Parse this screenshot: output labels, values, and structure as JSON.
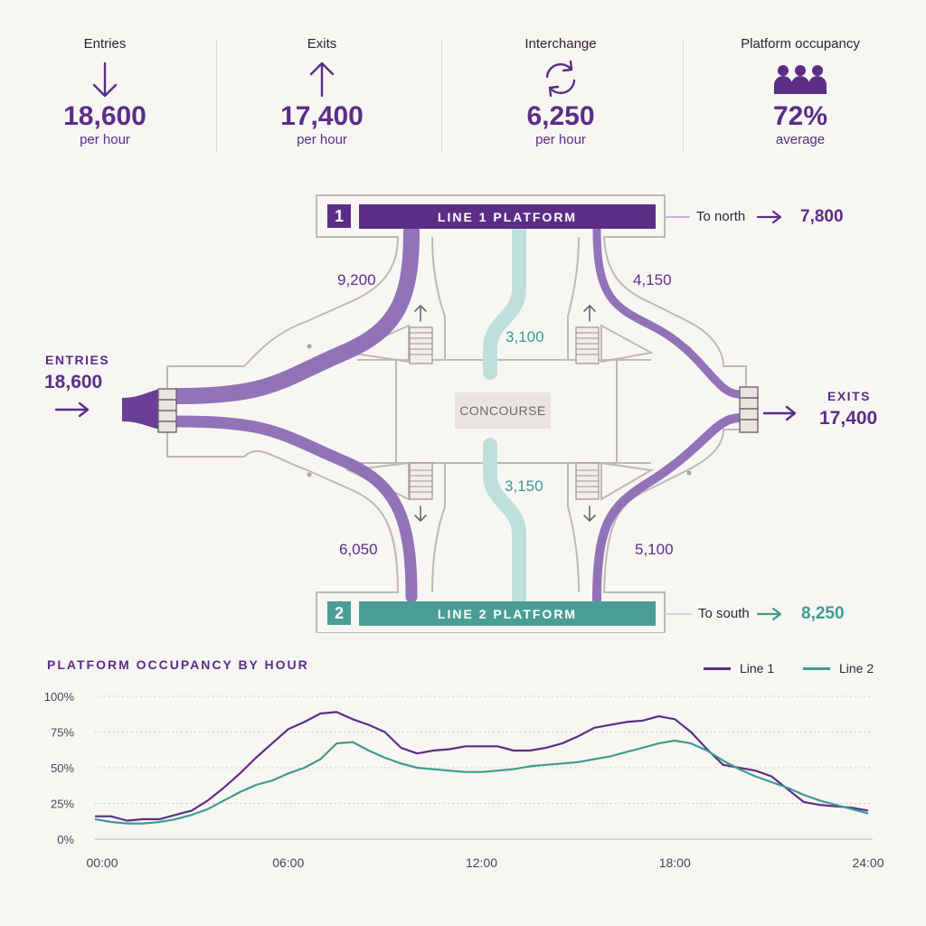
{
  "kpis": [
    {
      "label": "Entries",
      "value": "18,600",
      "unit": "per hour",
      "icon": "arrow-down-icon"
    },
    {
      "label": "Exits",
      "value": "17,400",
      "unit": "per hour",
      "icon": "arrow-up-icon"
    },
    {
      "label": "Interchange",
      "value": "6,250",
      "unit": "per hour",
      "icon": "interchange-cycle-icon"
    },
    {
      "label": "Platform occupancy",
      "value": "72%",
      "unit": "average",
      "icon": "people-group-icon"
    }
  ],
  "diagram": {
    "platform1": {
      "badge": "1",
      "label": "LINE 1 PLATFORM"
    },
    "platform2": {
      "badge": "2",
      "label": "LINE 2 PLATFORM"
    },
    "concourse": "CONCOURSE",
    "entries": {
      "label": "ENTRIES",
      "value": "18,600"
    },
    "exits": {
      "label": "EXITS",
      "value": "17,400"
    },
    "flows": {
      "entry_to_line1": "9,200",
      "line1_to_exit": "4,150",
      "entry_to_line2": "6,050",
      "line2_to_exit": "5,100",
      "interchange_up": "3,100",
      "interchange_down": "3,150"
    },
    "north": {
      "label": "To north",
      "value": "7,800"
    },
    "south": {
      "label": "To south",
      "value": "8,250"
    }
  },
  "colors": {
    "purple": "#5b2e86",
    "flow_purple": "#8c6bb4",
    "teal": "#3d9c90",
    "teal_light": "#bfe0da"
  },
  "chart_data": {
    "type": "line",
    "title": "PLATFORM OCCUPANCY BY HOUR",
    "x_ticks": [
      "00:00",
      "06:00",
      "12:00",
      "18:00",
      "24:00"
    ],
    "y_ticks": [
      "0%",
      "25%",
      "50%",
      "75%",
      "100%"
    ],
    "xlim": [
      0,
      24
    ],
    "ylim": [
      0,
      100
    ],
    "legend_position": "top-right",
    "grid": true,
    "series": [
      {
        "name": "Line 1",
        "color": "#5b2e86",
        "x": [
          0,
          0.5,
          1,
          1.5,
          2,
          2.5,
          3,
          3.5,
          4,
          4.5,
          5,
          5.5,
          6,
          6.5,
          7,
          7.5,
          8,
          8.5,
          9,
          9.5,
          10,
          10.5,
          11,
          11.5,
          12,
          12.5,
          13,
          13.5,
          14,
          14.5,
          15,
          15.5,
          16,
          16.5,
          17,
          17.5,
          18,
          18.5,
          19,
          19.5,
          20,
          20.5,
          21,
          21.5,
          22,
          22.5,
          23,
          23.5,
          24
        ],
        "values": [
          16,
          16,
          13,
          14,
          14,
          17,
          20,
          27,
          36,
          46,
          57,
          67,
          77,
          82,
          88,
          89,
          84,
          80,
          75,
          64,
          60,
          62,
          63,
          65,
          65,
          65,
          62,
          62,
          64,
          67,
          72,
          78,
          80,
          82,
          83,
          86,
          84,
          75,
          63,
          52,
          50,
          48,
          44,
          35,
          26,
          24,
          23,
          22,
          20
        ]
      },
      {
        "name": "Line 2",
        "color": "#3d9c90",
        "x": [
          0,
          0.5,
          1,
          1.5,
          2,
          2.5,
          3,
          3.5,
          4,
          4.5,
          5,
          5.5,
          6,
          6.5,
          7,
          7.5,
          8,
          8.5,
          9,
          9.5,
          10,
          10.5,
          11,
          11.5,
          12,
          12.5,
          13,
          13.5,
          14,
          14.5,
          15,
          15.5,
          16,
          16.5,
          17,
          17.5,
          18,
          18.5,
          19,
          19.5,
          20,
          20.5,
          21,
          21.5,
          22,
          22.5,
          23,
          23.5,
          24
        ],
        "values": [
          14,
          12,
          11,
          11,
          12,
          14,
          17,
          21,
          27,
          33,
          38,
          41,
          46,
          50,
          56,
          67,
          68,
          62,
          57,
          53,
          50,
          49,
          48,
          47,
          47,
          48,
          49,
          51,
          52,
          53,
          54,
          56,
          58,
          61,
          64,
          67,
          69,
          67,
          62,
          55,
          49,
          44,
          40,
          36,
          31,
          27,
          24,
          21,
          18
        ]
      }
    ]
  }
}
